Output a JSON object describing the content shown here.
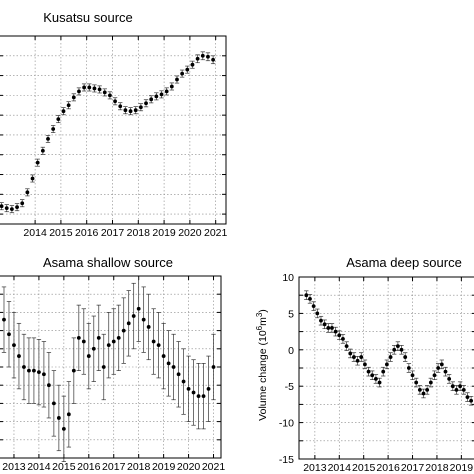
{
  "chart_data": [
    {
      "type": "scatter",
      "title": "Kusatsu source",
      "ylabel": "",
      "x_tick_labels": [
        "2014",
        "2015",
        "2016",
        "2017",
        "2018",
        "2019",
        "2020",
        "2021"
      ],
      "x_ticks": [
        2014,
        2015,
        2016,
        2017,
        2018,
        2019,
        2020,
        2021
      ],
      "xlim": [
        2012.6,
        2021.4
      ],
      "y_tick_labels": [],
      "ylim": [
        0,
        9.5
      ],
      "grid": true,
      "error_bars": true,
      "series": [
        {
          "x": [
            2012.7,
            2012.9,
            2013.1,
            2013.3,
            2013.5,
            2013.7,
            2013.9,
            2014.1,
            2014.3,
            2014.5,
            2014.7,
            2014.9,
            2015.1,
            2015.3,
            2015.5,
            2015.7,
            2015.9,
            2016.1,
            2016.3,
            2016.5,
            2016.7,
            2016.9,
            2017.1,
            2017.3,
            2017.5,
            2017.7,
            2017.9,
            2018.1,
            2018.3,
            2018.5,
            2018.7,
            2018.9,
            2019.1,
            2019.3,
            2019.5,
            2019.7,
            2019.9,
            2020.1,
            2020.3,
            2020.5,
            2020.7,
            2020.9
          ],
          "y": [
            0.9,
            0.8,
            0.75,
            0.85,
            1.05,
            1.6,
            2.3,
            3.1,
            3.7,
            4.3,
            4.8,
            5.3,
            5.7,
            6.0,
            6.4,
            6.7,
            6.9,
            6.9,
            6.85,
            6.8,
            6.65,
            6.5,
            6.2,
            5.95,
            5.75,
            5.7,
            5.75,
            5.9,
            6.1,
            6.3,
            6.45,
            6.55,
            6.7,
            6.95,
            7.3,
            7.6,
            7.8,
            8.05,
            8.35,
            8.5,
            8.45,
            8.3
          ],
          "error": [
            0.18,
            0.18,
            0.18,
            0.18,
            0.18,
            0.18,
            0.18,
            0.18,
            0.18,
            0.18,
            0.18,
            0.18,
            0.18,
            0.18,
            0.18,
            0.18,
            0.18,
            0.18,
            0.18,
            0.18,
            0.18,
            0.18,
            0.18,
            0.18,
            0.18,
            0.18,
            0.18,
            0.18,
            0.18,
            0.18,
            0.18,
            0.18,
            0.18,
            0.18,
            0.18,
            0.18,
            0.18,
            0.18,
            0.2,
            0.2,
            0.2,
            0.2
          ]
        }
      ]
    },
    {
      "type": "scatter",
      "title": "Asama shallow source",
      "ylabel": "",
      "x_tick_labels": [
        "2013",
        "2014",
        "2015",
        "2016",
        "2017",
        "2018",
        "2019",
        "2020",
        "2021"
      ],
      "x_ticks": [
        2013,
        2014,
        2015,
        2016,
        2017,
        2018,
        2019,
        2020,
        2021
      ],
      "xlim": [
        2012.4,
        2021.3
      ],
      "y_tick_labels": [],
      "ylim": [
        -15,
        10
      ],
      "grid": true,
      "error_bars": true,
      "series": [
        {
          "x": [
            2012.6,
            2012.8,
            2013.0,
            2013.2,
            2013.4,
            2013.6,
            2013.8,
            2014.0,
            2014.2,
            2014.4,
            2014.6,
            2014.8,
            2015.0,
            2015.2,
            2015.4,
            2015.6,
            2015.8,
            2016.0,
            2016.2,
            2016.4,
            2016.6,
            2016.8,
            2017.0,
            2017.2,
            2017.4,
            2017.6,
            2017.8,
            2018.0,
            2018.2,
            2018.4,
            2018.6,
            2018.8,
            2019.0,
            2019.2,
            2019.4,
            2019.6,
            2019.8,
            2020.0,
            2020.2,
            2020.4,
            2020.6,
            2020.8,
            2021.0
          ],
          "y": [
            4.0,
            2.0,
            0.5,
            -1.0,
            -2.5,
            -3.0,
            -3.0,
            -3.2,
            -3.5,
            -5.0,
            -7.5,
            -9.5,
            -11.0,
            -9.0,
            -3.0,
            1.5,
            1.0,
            -1.0,
            0.0,
            1.5,
            -2.5,
            0.5,
            1.0,
            1.5,
            2.5,
            3.5,
            4.5,
            5.5,
            4.0,
            3.0,
            1.0,
            0.5,
            -1.0,
            -2.0,
            -2.5,
            -3.5,
            -4.5,
            -5.5,
            -6.0,
            -6.5,
            -6.5,
            -5.5,
            -2.5
          ],
          "error": [
            4.5,
            4.5,
            4.5,
            4.5,
            4.5,
            4.5,
            4.5,
            4.5,
            4.5,
            4.5,
            4.5,
            4.5,
            4.5,
            4.5,
            4.5,
            4.5,
            4.5,
            4.5,
            4.5,
            4.5,
            4.5,
            4.5,
            4.5,
            4.5,
            4.5,
            4.5,
            4.5,
            4.5,
            4.5,
            4.5,
            4.5,
            4.5,
            4.5,
            4.5,
            4.5,
            4.5,
            4.5,
            4.5,
            4.5,
            4.5,
            4.5,
            4.5,
            4.5
          ]
        }
      ]
    },
    {
      "type": "scatter",
      "title": "Asama deep source",
      "ylabel": "Volume change (10",
      "ylabel_super": "6",
      "ylabel_unit": "m",
      "ylabel_unit_super": "3",
      "ylabel_close": ")",
      "x_tick_labels": [
        "2013",
        "2014",
        "2015",
        "2016",
        "2017",
        "2018",
        "2019"
      ],
      "x_ticks": [
        2013,
        2014,
        2015,
        2016,
        2017,
        2018,
        2019
      ],
      "xlim": [
        2012.35,
        2019.6
      ],
      "y_tick_labels": [
        "10",
        "5",
        "0",
        "-5",
        "-10",
        "-15"
      ],
      "y_ticks": [
        10,
        5,
        0,
        -5,
        -10,
        -15
      ],
      "ylim": [
        -15,
        10
      ],
      "grid": true,
      "error_bars": true,
      "series": [
        {
          "x": [
            2012.65,
            2012.8,
            2012.95,
            2013.1,
            2013.25,
            2013.4,
            2013.55,
            2013.7,
            2013.85,
            2014.0,
            2014.15,
            2014.3,
            2014.45,
            2014.6,
            2014.75,
            2014.9,
            2015.05,
            2015.2,
            2015.35,
            2015.5,
            2015.65,
            2015.8,
            2015.95,
            2016.1,
            2016.25,
            2016.4,
            2016.55,
            2016.7,
            2016.85,
            2017.0,
            2017.15,
            2017.3,
            2017.45,
            2017.6,
            2017.75,
            2017.9,
            2018.05,
            2018.2,
            2018.35,
            2018.5,
            2018.65,
            2018.8,
            2018.95,
            2019.1,
            2019.25,
            2019.4
          ],
          "y": [
            7.5,
            7.0,
            6.0,
            5.0,
            4.0,
            3.5,
            3.0,
            3.0,
            2.5,
            2.0,
            1.5,
            0.5,
            -0.5,
            -1.0,
            -1.5,
            -1.0,
            -2.0,
            -3.0,
            -3.5,
            -4.0,
            -4.5,
            -3.0,
            -2.0,
            -1.0,
            0.0,
            0.5,
            0.0,
            -1.0,
            -2.5,
            -3.5,
            -4.5,
            -5.5,
            -6.0,
            -5.5,
            -4.5,
            -3.5,
            -2.5,
            -2.0,
            -3.0,
            -4.0,
            -5.0,
            -5.5,
            -5.0,
            -5.5,
            -6.5,
            -7.0
          ],
          "error": [
            0.6,
            0.6,
            0.6,
            0.6,
            0.6,
            0.6,
            0.6,
            0.6,
            0.6,
            0.6,
            0.6,
            0.6,
            0.6,
            0.6,
            0.6,
            0.6,
            0.6,
            0.6,
            0.6,
            0.6,
            0.6,
            0.6,
            0.6,
            0.6,
            0.6,
            0.6,
            0.6,
            0.6,
            0.6,
            0.6,
            0.6,
            0.6,
            0.6,
            0.6,
            0.6,
            0.6,
            0.6,
            0.6,
            0.6,
            0.6,
            0.6,
            0.6,
            0.6,
            0.6,
            0.6,
            0.6
          ]
        }
      ]
    }
  ]
}
